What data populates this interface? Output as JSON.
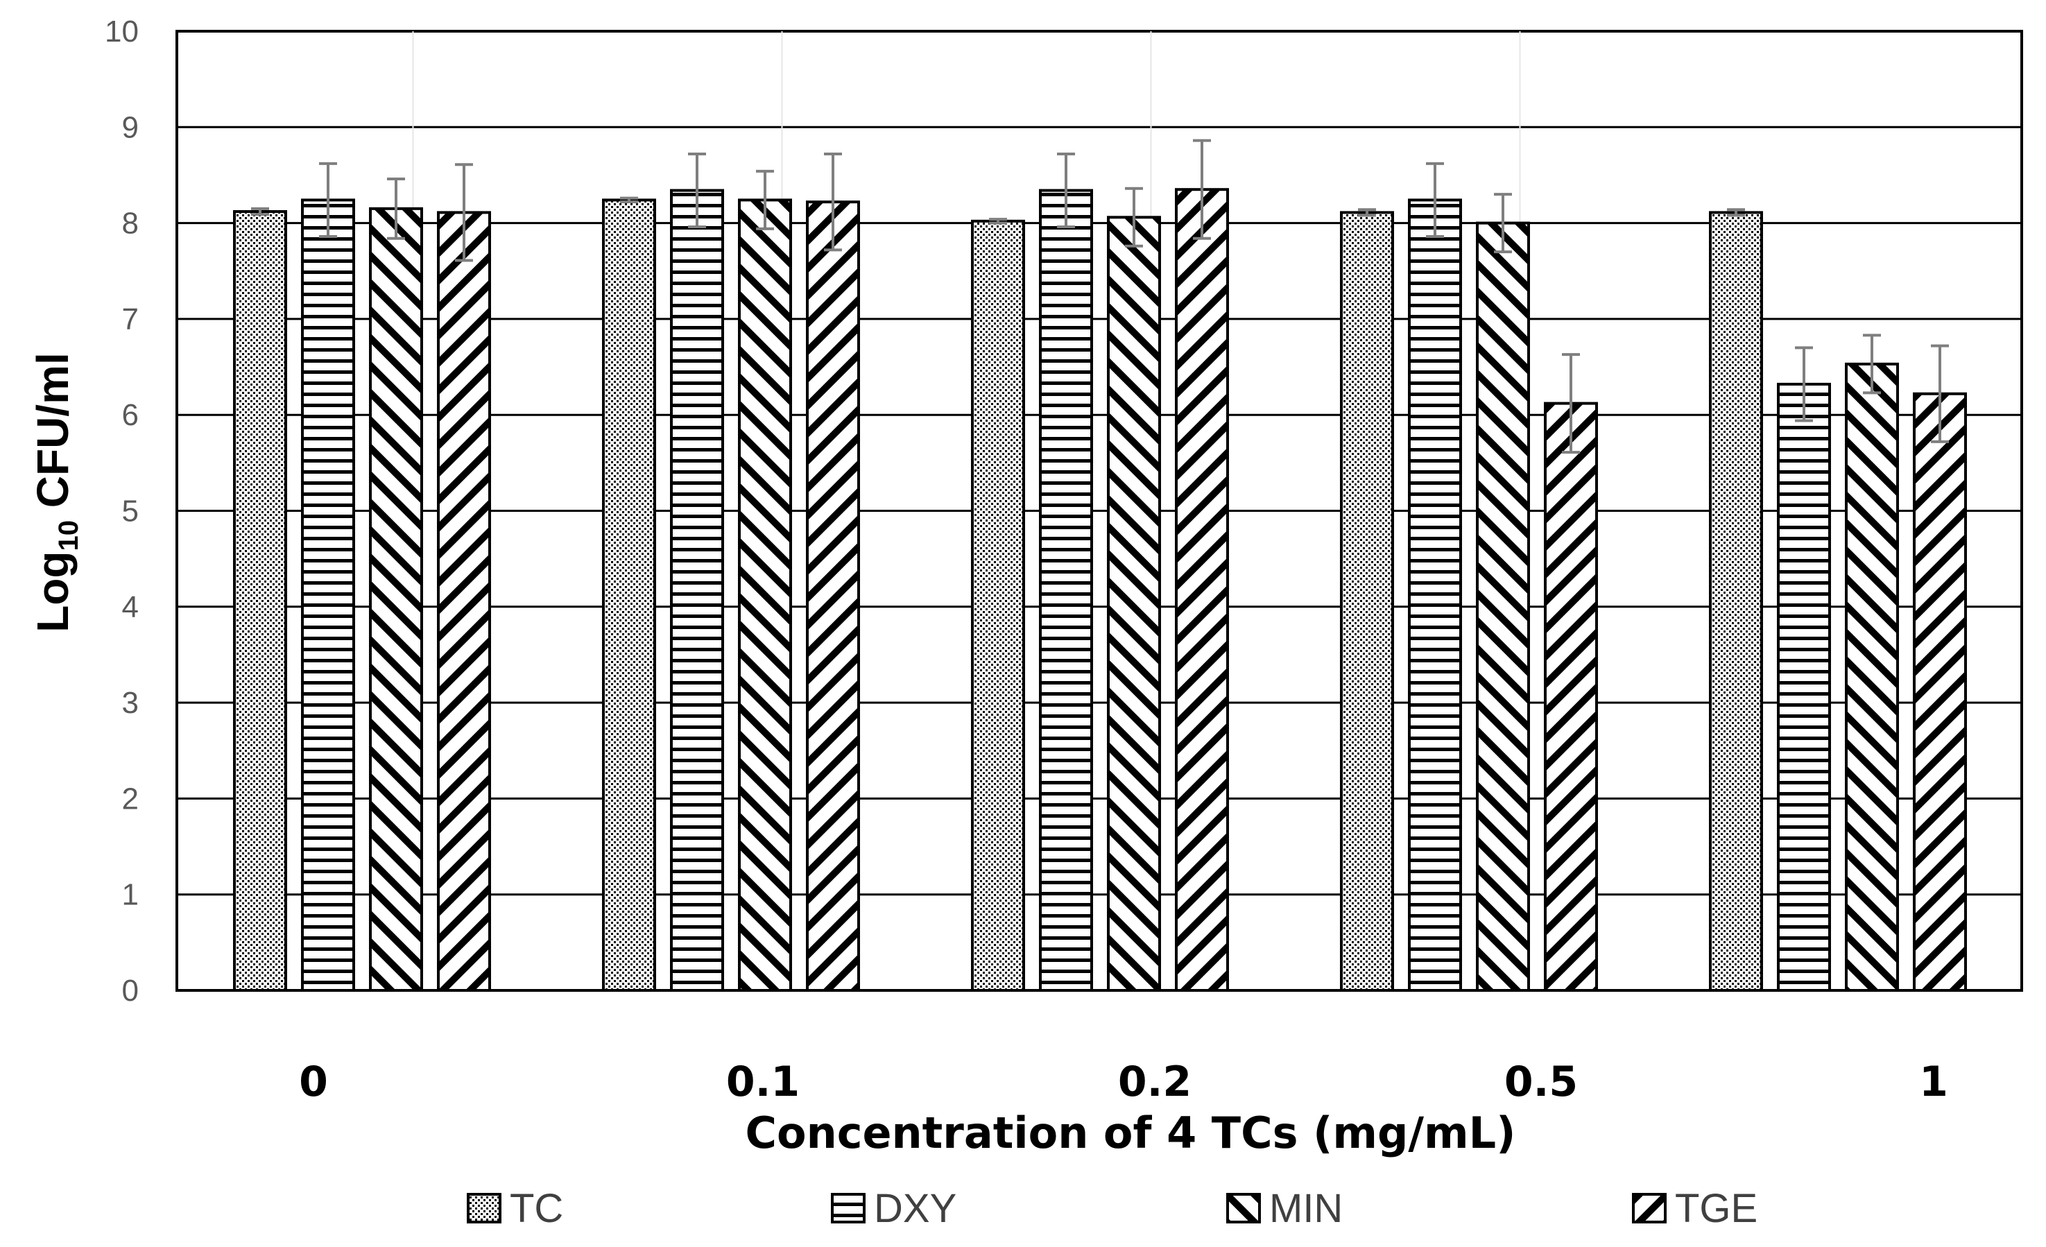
{
  "chart_data": {
    "type": "bar",
    "title": "",
    "xlabel": "Concentration of 4 TCs (mg/mL)",
    "ylabel": "Log10 CFU/ml",
    "ylabel_main": "Log",
    "ylabel_sub": "10",
    "ylabel_rest": " CFU/ml",
    "ylim": [
      0,
      10
    ],
    "yticks": [
      0,
      1,
      2,
      3,
      4,
      5,
      6,
      7,
      8,
      9,
      10
    ],
    "grid": true,
    "legend_position": "bottom",
    "categories": [
      "0",
      "0.1",
      "0.2",
      "0.5",
      "1"
    ],
    "series": [
      {
        "name": "TC",
        "pattern": "dots",
        "values": [
          8.12,
          8.24,
          8.02,
          8.11,
          8.11
        ],
        "errors": [
          0.03,
          0.02,
          0.02,
          0.03,
          0.03
        ]
      },
      {
        "name": "DXY",
        "pattern": "horiz",
        "values": [
          8.24,
          8.34,
          8.34,
          8.24,
          6.32
        ],
        "errors": [
          0.38,
          0.38,
          0.38,
          0.38,
          0.38
        ]
      },
      {
        "name": "MIN",
        "pattern": "backdiag",
        "values": [
          8.15,
          8.24,
          8.06,
          8.0,
          6.53
        ],
        "errors": [
          0.31,
          0.3,
          0.3,
          0.3,
          0.3
        ]
      },
      {
        "name": "TGE",
        "pattern": "fwddiag",
        "values": [
          8.11,
          8.22,
          8.35,
          6.12,
          6.22
        ],
        "errors": [
          0.5,
          0.5,
          0.51,
          0.51,
          0.5
        ]
      }
    ]
  }
}
